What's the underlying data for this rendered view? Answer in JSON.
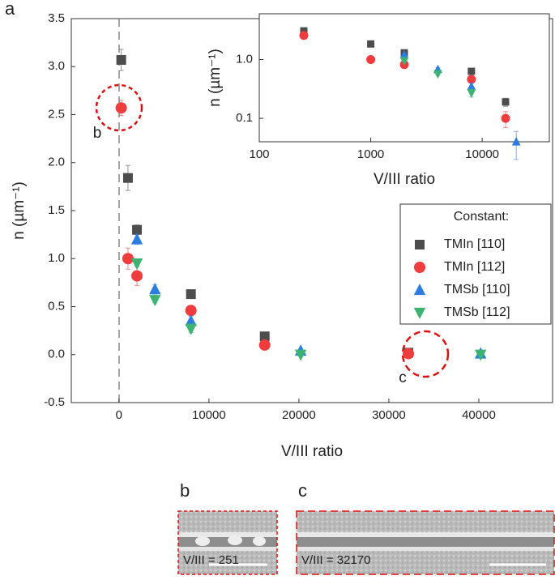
{
  "panel_label": "a",
  "chart_data": [
    {
      "type": "scatter",
      "xlabel": "V/III ratio",
      "ylabel": "n (µm⁻¹)",
      "xlim": [
        -5300,
        48200
      ],
      "xticks": [
        0,
        10000,
        20000,
        30000,
        40000
      ],
      "ylim": [
        -0.5,
        3.5
      ],
      "yticks": [
        -0.5,
        {
          "value": 0,
          "label": "0.0"
        },
        0.5,
        {
          "value": 1,
          "label": "1.0"
        },
        1.5,
        {
          "value": 2,
          "label": "2.0"
        },
        2.5,
        {
          "value": 3,
          "label": "3.0"
        },
        3.5
      ],
      "legend_title": "Constant:",
      "legend": "right",
      "annotations": [
        "b",
        "c"
      ],
      "series": [
        {
          "name": "TMIn [110]",
          "color": "#4d4d4d",
          "marker": "square",
          "x": [
            251,
            1000,
            2000,
            8000,
            16200,
            32170
          ],
          "values": [
            3.07,
            1.84,
            1.3,
            0.63,
            0.19,
            0.02
          ],
          "errors": [
            0.11,
            0.13,
            0.05,
            0.03,
            0.03,
            0.03
          ]
        },
        {
          "name": "TMIn [112]",
          "color": "#f03c3c",
          "marker": "circle",
          "x": [
            251,
            1000,
            2000,
            8000,
            16200,
            32170
          ],
          "values": [
            2.57,
            1.0,
            0.82,
            0.46,
            0.1,
            0.01
          ],
          "errors": [
            0.08,
            0.11,
            0.1,
            0.05,
            0.03,
            0.02
          ]
        },
        {
          "name": "TMSb [110]",
          "color": "#2b7de0",
          "marker": "triangle-up",
          "x": [
            2000,
            4000,
            8000,
            20200,
            40200
          ],
          "values": [
            1.2,
            0.68,
            0.35,
            0.04,
            0.01
          ],
          "errors": [
            0.05,
            0.05,
            0.05,
            0.02,
            0.02
          ]
        },
        {
          "name": "TMSb [112]",
          "color": "#3cb371",
          "marker": "triangle-down",
          "x": [
            2000,
            4000,
            8000,
            20200,
            40200
          ],
          "values": [
            0.95,
            0.57,
            0.27,
            0.0,
            0.0
          ],
          "errors": [
            0.03,
            0.03,
            0.04,
            0.02,
            0.02
          ]
        }
      ]
    },
    {
      "type": "scatter",
      "xlabel": "V/III ratio",
      "ylabel": "n (µm⁻¹)",
      "xscale": "log",
      "yscale": "log",
      "xlim": [
        100,
        40000
      ],
      "xticks": [
        100,
        1000,
        10000
      ],
      "ylim": [
        0.04,
        6
      ],
      "yticks": [
        0.1,
        {
          "value": 1,
          "label": "1.0"
        }
      ]
    }
  ],
  "images": [
    {
      "label": "b",
      "caption": "V/III = 251"
    },
    {
      "label": "c",
      "caption": "V/III = 32170"
    }
  ]
}
